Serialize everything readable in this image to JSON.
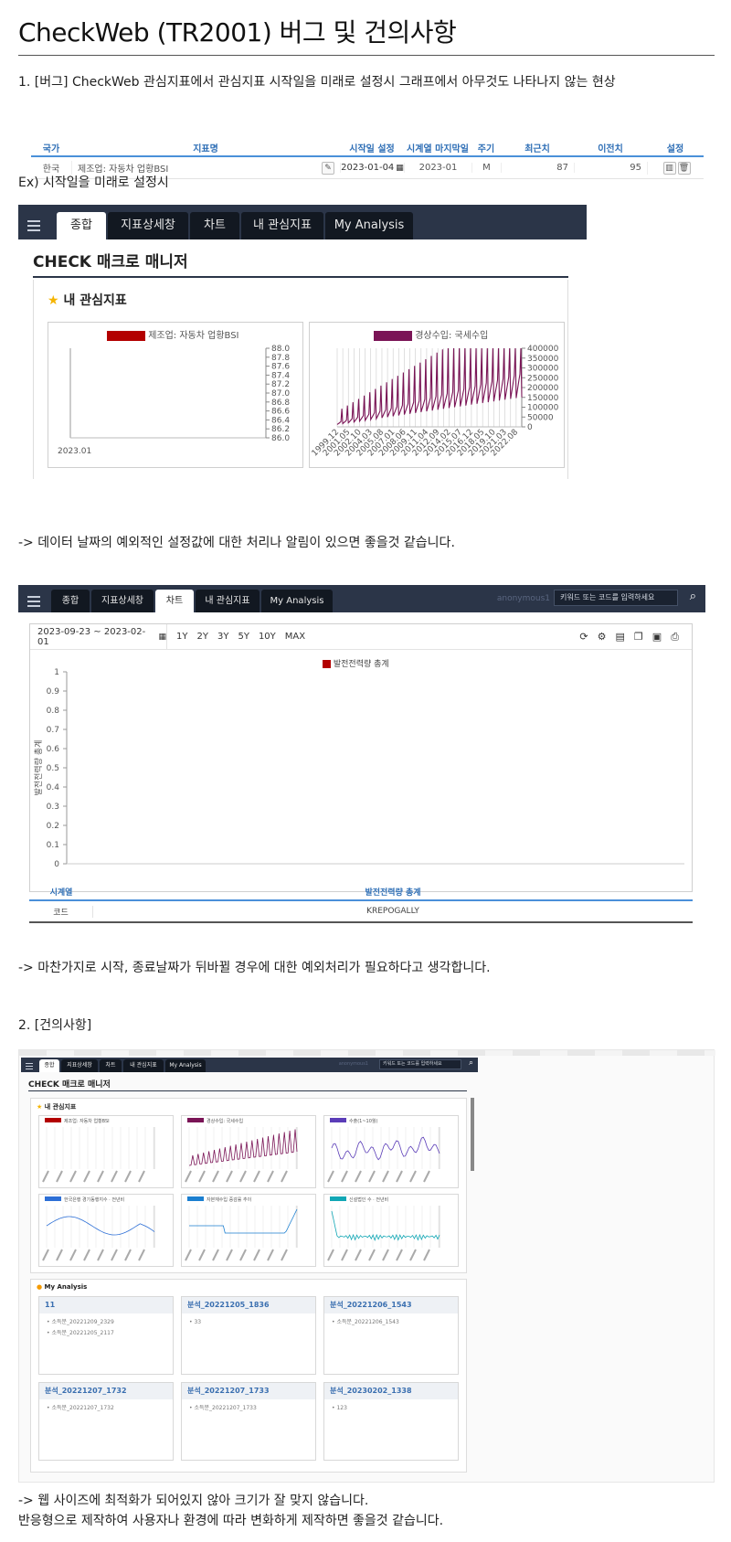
{
  "page": {
    "title": "CheckWeb (TR2001) 버그 및 건의사항",
    "bug1_heading": "1. [버그] CheckWeb 관심지표에서 관심지표 시작일을 미래로 설정시 그래프에서 아무것도 나타나지 않는 현상",
    "example_text": "Ex) 시작일을 미래로 설정시",
    "comment1": "-> 데이터 날짜의 예외적인 설정값에 대한 처리나 알림이 있으면 좋을것 같습니다.",
    "comment2": "-> 마찬가지로 시작, 종료날짜가 뒤바뀔 경우에 대한 예외처리가 필요하다고 생각합니다.",
    "suggest_heading": "2. [건의사항]",
    "comment3_line1": "-> 웹 사이즈에 최적화가 되어있지 않아 크기가 잘 맞지 않습니다.",
    "comment3_line2": "반응형으로 제작하여 사용자나 환경에 따라 변화하게 제작하면 좋을것 같습니다."
  },
  "indicator_table": {
    "headers": [
      "국가",
      "지표명",
      "시작일 설정",
      "시계열 마지막일",
      "주기",
      "최근치",
      "이전치",
      "설정"
    ],
    "row": {
      "country": "한국",
      "name": "제조업: 자동차 업황BSI",
      "start": "2023-01-04",
      "last": "2023-01",
      "period": "M",
      "recent": "87",
      "previous": "95"
    },
    "icons": [
      "pencil-icon",
      "calendar-icon",
      "chart-icon",
      "trash-icon"
    ]
  },
  "app1": {
    "tabs": [
      "종합",
      "지표상세창",
      "차트",
      "내 관심지표",
      "My Analysis"
    ],
    "active_tab": 0,
    "section_title": "CHECK 매크로 매니저",
    "watch_title": "내 관심지표",
    "chart_left": {
      "legend": "제조업: 자동차 업황BSI",
      "color": "#b30000",
      "yticks": [
        "88.0",
        "87.8",
        "87.6",
        "87.4",
        "87.2",
        "87.0",
        "86.8",
        "86.6",
        "86.4",
        "86.2",
        "86.0"
      ],
      "xlabel": "2023.01"
    },
    "chart_right": {
      "legend": "경상수입: 국세수입",
      "color": "#7a1456",
      "yticks": [
        "400000",
        "350000",
        "300000",
        "250000",
        "200000",
        "150000",
        "100000",
        "50000",
        "0"
      ],
      "xticks": [
        "1999.12",
        "2001.05",
        "2002.10",
        "2004.03",
        "2005.08",
        "2007.01",
        "2008.06",
        "2009.11",
        "2011.04",
        "2012.09",
        "2014.02",
        "2015.07",
        "2016.12",
        "2018.05",
        "2019.10",
        "2021.03",
        "2022.08"
      ]
    }
  },
  "app2": {
    "tabs": [
      "종합",
      "지표상세창",
      "차트",
      "내 관심지표",
      "My Analysis"
    ],
    "active_tab": 2,
    "user": "anonymous1",
    "search_placeholder": "키워드 또는 코드를 입력하세요",
    "date_range": "2023-09-23 ~ 2023-02-01",
    "periods": [
      "1Y",
      "2Y",
      "3Y",
      "5Y",
      "10Y",
      "MAX"
    ],
    "legend": "발전전력량 총계",
    "legend_color": "#b30000",
    "ylabel": "발전전력량 총계",
    "yticks": [
      "1",
      "0.9",
      "0.8",
      "0.7",
      "0.6",
      "0.5",
      "0.4",
      "0.3",
      "0.2",
      "0.1",
      "0"
    ],
    "table_headers": [
      "시계열",
      "발전전력량 총계"
    ],
    "table_row": [
      "코드",
      "KREPOGALLY"
    ],
    "toolbar_icons": [
      "refresh-icon",
      "gear-icon",
      "pdf-icon",
      "copy-icon",
      "image-icon",
      "print-icon"
    ]
  },
  "app3": {
    "tabs": [
      "종합",
      "지표상세창",
      "차트",
      "내 관심지표",
      "My Analysis"
    ],
    "active_tab": 0,
    "user": "anonymous1",
    "search_placeholder": "키워드 또는 코드를 입력하세요",
    "section_title": "CHECK 매크로 매니저",
    "watch_title": "내 관심지표",
    "mini_legends": [
      "제조업: 자동차 업황BSI",
      "경상수입: 국세수입",
      "수출(1~10월)",
      "한국은행 경기동행지수 · 전년비",
      "자본재수입 증감률 추이",
      "신설법인 수 · 전년비"
    ],
    "mini_colors": [
      "#b30000",
      "#7a1456",
      "#5b3db8",
      "#2d6fd6",
      "#1b7fd0",
      "#12a7b5"
    ],
    "analysis_title": "My Analysis",
    "analysis_cards": [
      {
        "title": "11",
        "items": [
          "소득분_20221209_2329",
          "소득분_20221205_2117"
        ]
      },
      {
        "title": "분석_20221205_1836",
        "items": [
          "33"
        ]
      },
      {
        "title": "분석_20221206_1543",
        "items": [
          "소득분_20221206_1543"
        ]
      },
      {
        "title": "분석_20221207_1732",
        "items": [
          "소득분_20221207_1732"
        ]
      },
      {
        "title": "분석_20221207_1733",
        "items": [
          "소득분_20221207_1733"
        ]
      },
      {
        "title": "분석_20230202_1338",
        "items": [
          "123"
        ]
      }
    ]
  }
}
